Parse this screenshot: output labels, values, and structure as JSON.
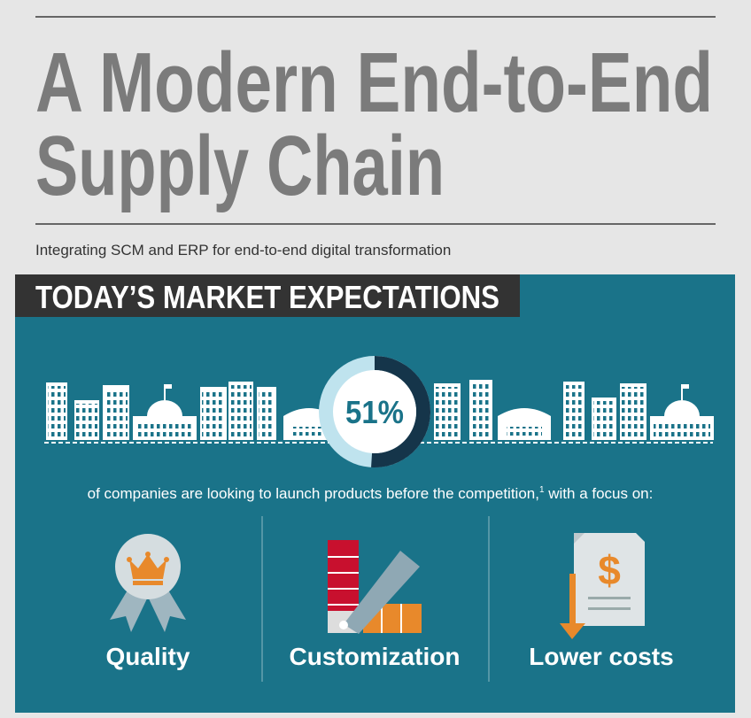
{
  "header": {
    "title_lines": [
      "A Modern End-to-End",
      "Supply Chain"
    ],
    "subtitle": "Integrating SCM and ERP for end-to-end digital transformation"
  },
  "section": {
    "heading": "TODAY’S MARKET EXPECTATIONS",
    "stat": {
      "value": 51,
      "label": "51%"
    },
    "description": {
      "text": "of companies are looking to launch products before the competition,",
      "footnote": "1",
      "tail": " with a focus on:"
    },
    "focus_items": [
      "Quality",
      "Customization",
      "Lower costs"
    ]
  }
}
